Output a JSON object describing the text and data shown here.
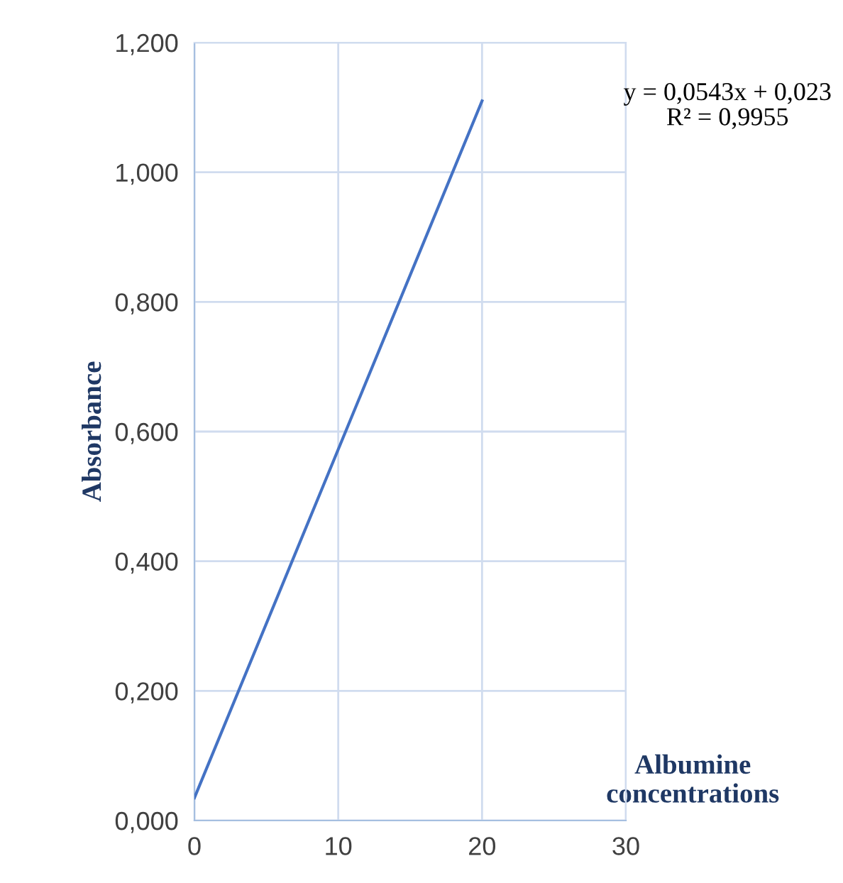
{
  "chart_data": {
    "type": "line",
    "xlabel": "Albumine\nconcentrations",
    "ylabel": "Absorbance",
    "x": [
      0,
      20
    ],
    "series": [
      {
        "color": "#4472c4",
        "values": [
          0.035,
          1.11
        ]
      }
    ],
    "xlim": [
      0,
      30
    ],
    "xticks": [
      0,
      10,
      20,
      30
    ],
    "ylim": [
      0,
      1.2
    ],
    "yticks": [
      {
        "value": 0,
        "label": "0,000"
      },
      {
        "value": 0.2,
        "label": "0,200"
      },
      {
        "value": 0.4,
        "label": "0,400"
      },
      {
        "value": 0.6,
        "label": "0,600"
      },
      {
        "value": 0.8,
        "label": "0,800"
      },
      {
        "value": 1.0,
        "label": "1,000"
      },
      {
        "value": 1.2,
        "label": "1,200"
      }
    ],
    "grid": true,
    "marker": "none",
    "line_style": "solid",
    "annotations": [
      "y = 0,0543x + 0,023\nR² = 0,9955"
    ]
  }
}
